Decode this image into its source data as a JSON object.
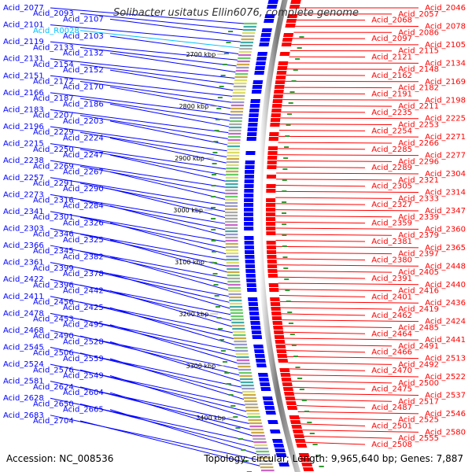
{
  "title": "Solibacter usitatus Ellin6076, complete genome",
  "accession": "Accession: NC_008536",
  "summary": "Topology: circular; Length: 9,965,640 bp; Genes: 7,887",
  "colors": {
    "reverse_strand": "#0000ff",
    "forward_strand": "#ff0000",
    "rna": "#00bfff",
    "backbone": "#888888"
  },
  "scale_marks": [
    "2700 kbp",
    "2800 kbp",
    "2900 kbp",
    "3000 kbp",
    "3100 kbp",
    "3200 kbp",
    "3300 kbp",
    "3400 kbp"
  ],
  "left_labels": [
    "Acid_2077",
    "Acid_2093",
    "Acid_2107",
    "Acid_2101",
    "Acid_R0028",
    "Acid_2103",
    "Acid_2119",
    "Acid_2133",
    "Acid_2132",
    "Acid_2131",
    "Acid_2154",
    "Acid_2152",
    "Acid_2151",
    "Acid_2172",
    "Acid_2170",
    "Acid_2166",
    "Acid_2187",
    "Acid_2186",
    "Acid_2183",
    "Acid_2207",
    "Acid_2203",
    "Acid_2196",
    "Acid_2229",
    "Acid_2224",
    "Acid_2215",
    "Acid_2250",
    "Acid_2247",
    "Acid_2238",
    "Acid_2269",
    "Acid_2267",
    "Acid_2257",
    "Acid_2291",
    "Acid_2290",
    "Acid_2273",
    "Acid_2316",
    "Acid_2284",
    "Acid_2341",
    "Acid_2301",
    "Acid_2326",
    "Acid_2303",
    "Acid_2346",
    "Acid_2325",
    "Acid_2366",
    "Acid_2345",
    "Acid_2382",
    "Acid_2361",
    "Acid_2399",
    "Acid_2378",
    "Acid_2422",
    "Acid_2396",
    "Acid_2442",
    "Acid_2411",
    "Acid_2456",
    "Acid_2425",
    "Acid_2478",
    "Acid_2453",
    "Acid_2495",
    "Acid_2468",
    "Acid_2490",
    "Acid_2528",
    "Acid_2545",
    "Acid_2506",
    "Acid_2559",
    "Acid_2524",
    "Acid_2576",
    "Acid_2549",
    "Acid_2581",
    "Acid_2624",
    "Acid_2604",
    "Acid_2628",
    "Acid_2650",
    "Acid_2665",
    "Acid_2683",
    "Acid_2704"
  ],
  "right_labels": [
    "Acid_2046",
    "Acid_2057",
    "Acid_2068",
    "Acid_2078",
    "Acid_2086",
    "Acid_2097",
    "Acid_2105",
    "Acid_2115",
    "Acid_2121",
    "Acid_2134",
    "Acid_2148",
    "Acid_2162",
    "Acid_2169",
    "Acid_2182",
    "Acid_2191",
    "Acid_2198",
    "Acid_2211",
    "Acid_2235",
    "Acid_2225",
    "Acid_2253",
    "Acid_2254",
    "Acid_2271",
    "Acid_2266",
    "Acid_2285",
    "Acid_2277",
    "Acid_2296",
    "Acid_2289",
    "Acid_2304",
    "Acid_2321",
    "Acid_2305",
    "Acid_2314",
    "Acid_2333",
    "Acid_2327",
    "Acid_2347",
    "Acid_2339",
    "Acid_2359",
    "Acid_2360",
    "Acid_2379",
    "Acid_2381",
    "Acid_2365",
    "Acid_2397",
    "Acid_2380",
    "Acid_2448",
    "Acid_2405",
    "Acid_2391",
    "Acid_2440",
    "Acid_2416",
    "Acid_2401",
    "Acid_2436",
    "Acid_2419",
    "Acid_2462",
    "Acid_2424",
    "Acid_2485",
    "Acid_2464",
    "Acid_2441",
    "Acid_2491",
    "Acid_2466",
    "Acid_2513",
    "Acid_2492",
    "Acid_2470",
    "Acid_2522",
    "Acid_2500",
    "Acid_2475",
    "Acid_2537",
    "Acid_2517",
    "Acid_2487",
    "Acid_2546",
    "Acid_2525",
    "Acid_2501",
    "Acid_2580",
    "Acid_2555",
    "Acid_2508"
  ]
}
